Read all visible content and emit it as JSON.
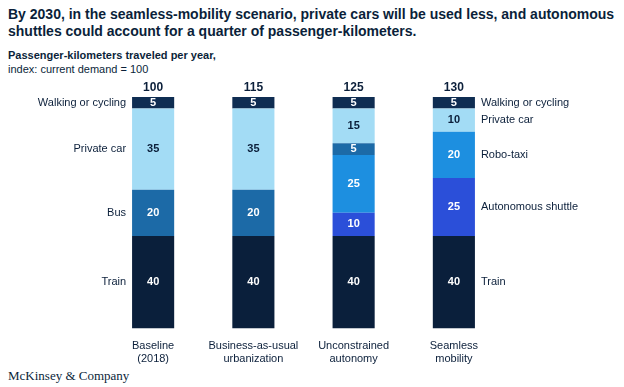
{
  "chart_data": {
    "type": "bar",
    "title": "By 2030, in the seamless-mobility scenario, private cars will be used less, and autonomous shuttles could account for a quarter of passenger-kilometers.",
    "subtitle": [
      "Passenger-kilometers traveled per year,",
      "index: current demand = 100"
    ],
    "categories": [
      "Baseline (2018)",
      "Business-as-usual urbanization",
      "Unconstrained autonomy",
      "Seamless mobility"
    ],
    "series": [
      {
        "name": "Train",
        "color": "#0a1f3b",
        "values": [
          40,
          40,
          40,
          40
        ]
      },
      {
        "name": "Autonomous shuttle",
        "color": "#2b4fd9",
        "values": [
          null,
          null,
          10,
          25
        ]
      },
      {
        "name": "Robo-taxi",
        "color": "#1d8fe0",
        "values": [
          null,
          null,
          25,
          20
        ]
      },
      {
        "name": "Bus",
        "color": "#1c6aa7",
        "values": [
          20,
          20,
          5,
          null
        ]
      },
      {
        "name": "Private car",
        "color": "#a3dcf5",
        "values": [
          35,
          35,
          15,
          10
        ]
      },
      {
        "name": "Walking or cycling",
        "color": "#0f2d52",
        "values": [
          5,
          5,
          5,
          5
        ]
      }
    ],
    "totals": [
      100,
      115,
      125,
      130
    ],
    "stacked": true,
    "data_labels": true,
    "tick_labels": "x",
    "grid": false,
    "ylim": [
      0,
      100
    ],
    "source": "McKinsey & Company"
  }
}
